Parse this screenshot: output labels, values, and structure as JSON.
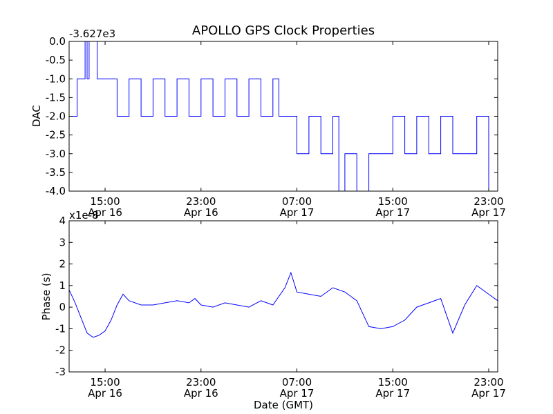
{
  "chart_data": [
    {
      "type": "line",
      "title": "APOLLO GPS Clock Properties",
      "ylabel": "DAC",
      "xlabel": "",
      "offset_label": "-3.627e3",
      "ylim": [
        -4.0,
        0.0
      ],
      "xlim": [
        "Apr 16 12:00",
        "Apr 17 23:45"
      ],
      "yticks": [
        "0.0",
        "-0.5",
        "-1.0",
        "-1.5",
        "-2.0",
        "-2.5",
        "-3.0",
        "-3.5",
        "-4.0"
      ],
      "xticks": [
        {
          "time": "15:00",
          "date": "Apr 16"
        },
        {
          "time": "23:00",
          "date": "Apr 16"
        },
        {
          "time": "07:00",
          "date": "Apr 17"
        },
        {
          "time": "15:00",
          "date": "Apr 17"
        },
        {
          "time": "23:00",
          "date": "Apr 17"
        }
      ],
      "color": "#0000ff",
      "series": [
        {
          "x_hours_note_removed": null,
          "x": [
            "Apr 16 12:00",
            "Apr 16 12:40",
            "Apr 16 13:10",
            "Apr 16 13:20",
            "Apr 16 13:25",
            "Apr 16 13:30",
            "Apr 16 13:40",
            "Apr 16 14:20",
            "Apr 16 14:30",
            "Apr 16 15:15",
            "Apr 16 16:00",
            "Apr 16 17:00",
            "Apr 16 18:00",
            "Apr 16 19:00",
            "Apr 16 20:00",
            "Apr 16 21:00",
            "Apr 16 22:00",
            "Apr 16 23:00",
            "Apr 17 00:00",
            "Apr 17 01:00",
            "Apr 17 02:00",
            "Apr 17 03:00",
            "Apr 17 04:00",
            "Apr 17 05:00",
            "Apr 17 05:30",
            "Apr 17 06:00",
            "Apr 17 07:00",
            "Apr 17 08:00",
            "Apr 17 09:00",
            "Apr 17 10:00",
            "Apr 17 10:30",
            "Apr 17 11:00",
            "Apr 17 12:00",
            "Apr 17 13:00",
            "Apr 17 14:00",
            "Apr 17 15:00",
            "Apr 17 16:00",
            "Apr 17 17:00",
            "Apr 17 18:00",
            "Apr 17 19:00",
            "Apr 17 20:00",
            "Apr 17 21:00",
            "Apr 17 22:00",
            "Apr 17 23:00",
            "Apr 17 23:45"
          ],
          "values": [
            -2,
            -1,
            -1,
            0,
            0,
            -1,
            0,
            -1,
            -1,
            -1,
            -2,
            -1,
            -2,
            -1,
            -2,
            -1,
            -2,
            -1,
            -2,
            -1,
            -2,
            -1,
            -2,
            -1,
            -2,
            -2,
            -3,
            -2,
            -3,
            -2,
            -4,
            -3,
            -4,
            -3,
            -3,
            -2,
            -3,
            -2,
            -3,
            -2,
            -3,
            -3,
            -2,
            -4,
            -3
          ]
        }
      ]
    },
    {
      "type": "line",
      "title": "",
      "ylabel": "Phase (s)",
      "xlabel": "Date (GMT)",
      "offset_label": "x1e-8",
      "ylim": [
        -3,
        4
      ],
      "xlim": [
        "Apr 16 12:00",
        "Apr 17 23:45"
      ],
      "yticks": [
        "4",
        "3",
        "2",
        "1",
        "0",
        "-1",
        "-2",
        "-3"
      ],
      "xticks": [
        {
          "time": "15:00",
          "date": "Apr 16"
        },
        {
          "time": "23:00",
          "date": "Apr 16"
        },
        {
          "time": "07:00",
          "date": "Apr 17"
        },
        {
          "time": "15:00",
          "date": "Apr 17"
        },
        {
          "time": "23:00",
          "date": "Apr 17"
        }
      ],
      "color": "#0000ff",
      "series": [
        {
          "x": [
            "Apr 16 12:00",
            "Apr 16 12:30",
            "Apr 16 13:00",
            "Apr 16 13:30",
            "Apr 16 14:00",
            "Apr 16 14:30",
            "Apr 16 15:00",
            "Apr 16 15:30",
            "Apr 16 16:00",
            "Apr 16 16:30",
            "Apr 16 17:00",
            "Apr 16 18:00",
            "Apr 16 19:00",
            "Apr 16 20:00",
            "Apr 16 21:00",
            "Apr 16 22:00",
            "Apr 16 22:30",
            "Apr 16 23:00",
            "Apr 17 00:00",
            "Apr 17 01:00",
            "Apr 17 02:00",
            "Apr 17 03:00",
            "Apr 17 04:00",
            "Apr 17 05:00",
            "Apr 17 06:00",
            "Apr 17 06:30",
            "Apr 17 07:00",
            "Apr 17 08:00",
            "Apr 17 09:00",
            "Apr 17 10:00",
            "Apr 17 11:00",
            "Apr 17 12:00",
            "Apr 17 13:00",
            "Apr 17 14:00",
            "Apr 17 15:00",
            "Apr 17 16:00",
            "Apr 17 17:00",
            "Apr 17 18:00",
            "Apr 17 19:00",
            "Apr 17 20:00",
            "Apr 17 21:00",
            "Apr 17 22:00",
            "Apr 17 23:00",
            "Apr 17 23:45"
          ],
          "values": [
            0.8,
            0.2,
            -0.5,
            -1.2,
            -1.4,
            -1.3,
            -1.1,
            -0.6,
            0.1,
            0.6,
            0.3,
            0.1,
            0.1,
            0.2,
            0.3,
            0.2,
            0.4,
            0.1,
            0.0,
            0.2,
            0.1,
            0.0,
            0.3,
            0.1,
            0.9,
            1.6,
            0.7,
            0.6,
            0.5,
            0.9,
            0.7,
            0.3,
            -0.9,
            -1.0,
            -0.9,
            -0.6,
            0.0,
            0.2,
            0.4,
            -1.2,
            0.1,
            1.0,
            0.6,
            0.3
          ]
        }
      ]
    }
  ]
}
